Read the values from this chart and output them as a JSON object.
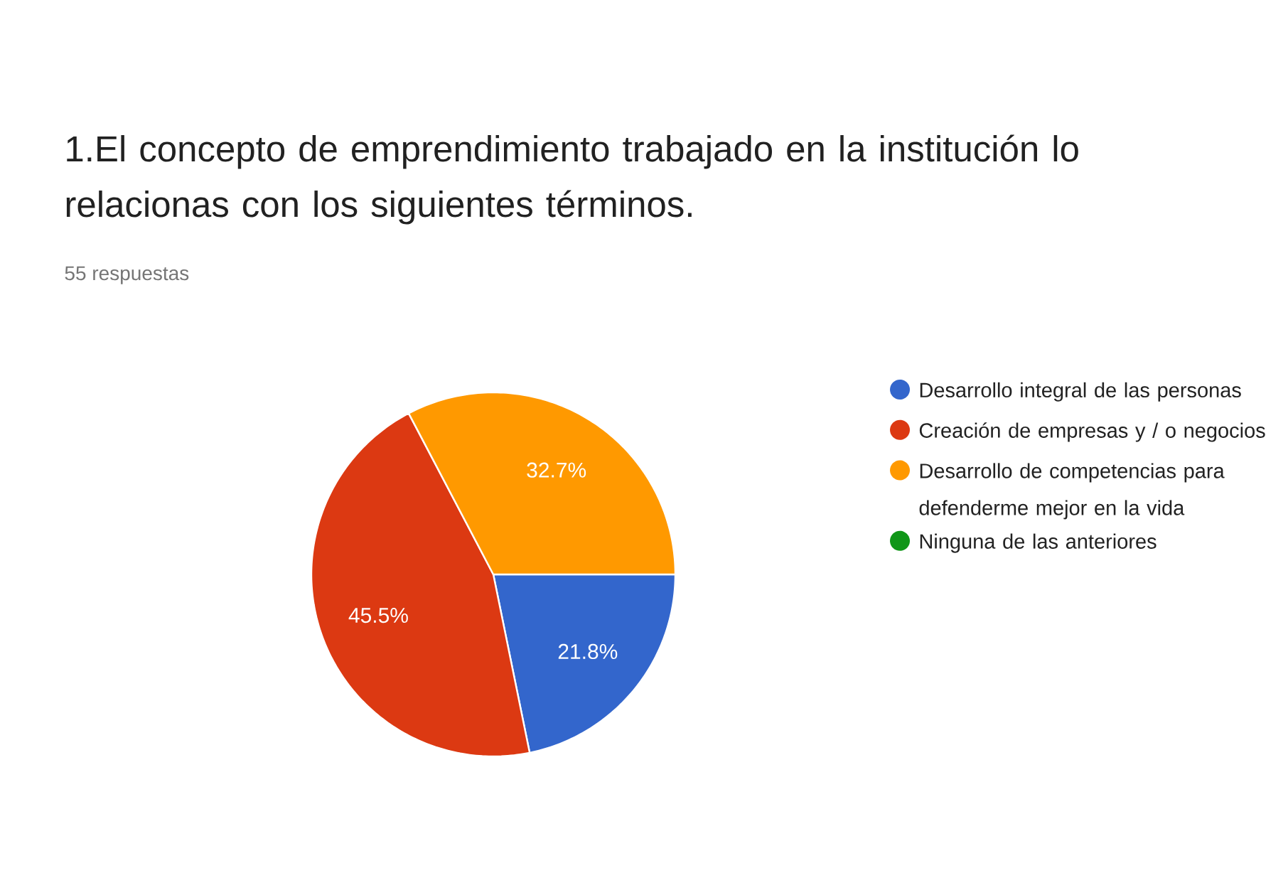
{
  "chart_data": {
    "type": "pie",
    "title": "1.El concepto de emprendimiento trabajado en la institución lo relacionas con los siguientes términos.",
    "subtitle": "55 respuestas",
    "categories": [
      "Desarrollo integral de las personas",
      "Creación de empresas y / o negocios",
      "Desarrollo de competencias para defenderme mejor en la vida",
      "Ninguna de las anteriores"
    ],
    "values": [
      21.8,
      45.5,
      32.7,
      0
    ],
    "colors": [
      "#3366cc",
      "#dc3912",
      "#ff9900",
      "#109618"
    ],
    "value_labels": [
      "21.8%",
      "45.5%",
      "32.7%",
      null
    ],
    "legend": "right"
  }
}
